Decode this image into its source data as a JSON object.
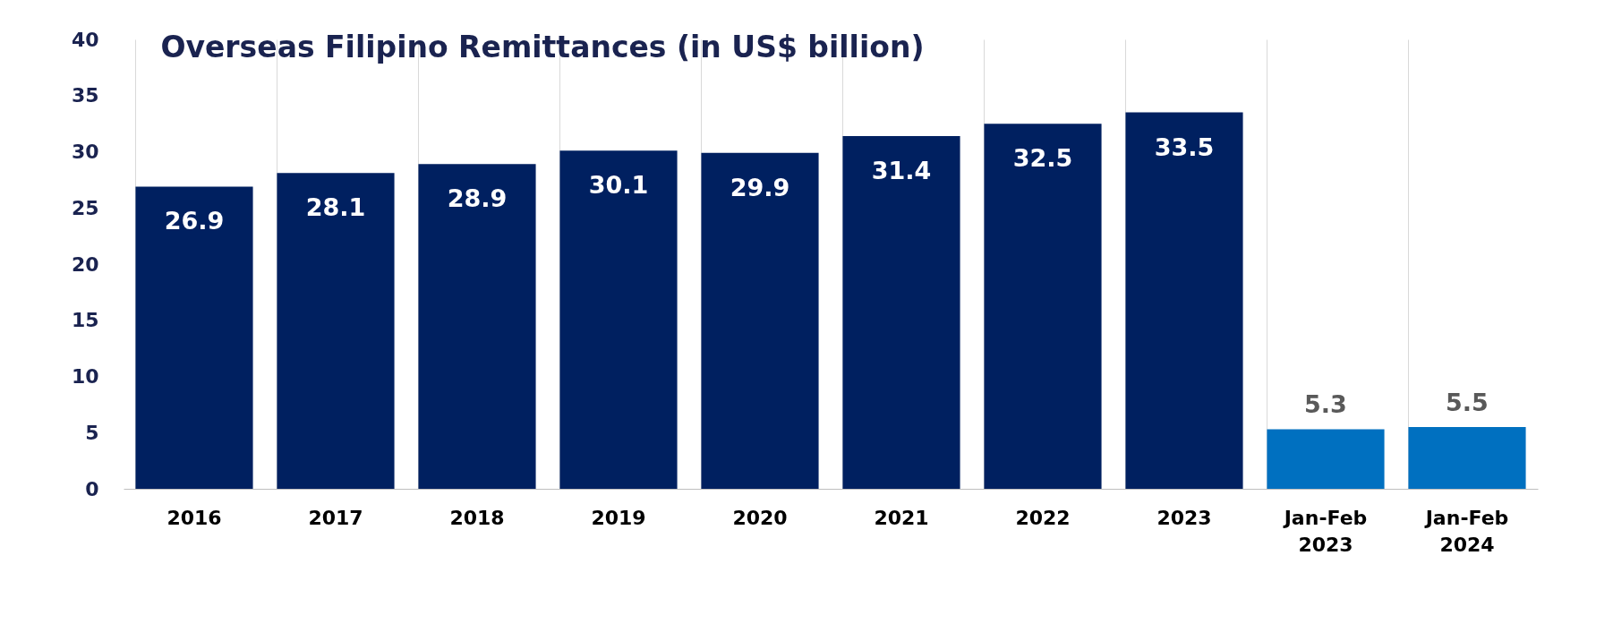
{
  "chart_data": {
    "type": "bar",
    "title": "Overseas Filipino Remittances (in US$ billion)",
    "categories": [
      "2016",
      "2017",
      "2018",
      "2019",
      "2020",
      "2021",
      "2022",
      "2023",
      "Jan-Feb 2023",
      "Jan-Feb 2024"
    ],
    "values": [
      26.9,
      28.1,
      28.9,
      30.1,
      29.9,
      31.4,
      32.5,
      33.5,
      5.3,
      5.5
    ],
    "colors": [
      "#002060",
      "#002060",
      "#002060",
      "#002060",
      "#002060",
      "#002060",
      "#002060",
      "#002060",
      "#0070c0",
      "#0070c0"
    ],
    "ylim": [
      0,
      40
    ],
    "yticks": [
      0,
      5,
      10,
      15,
      20,
      25,
      30,
      35,
      40
    ],
    "grid": "x",
    "data_labels": true
  }
}
